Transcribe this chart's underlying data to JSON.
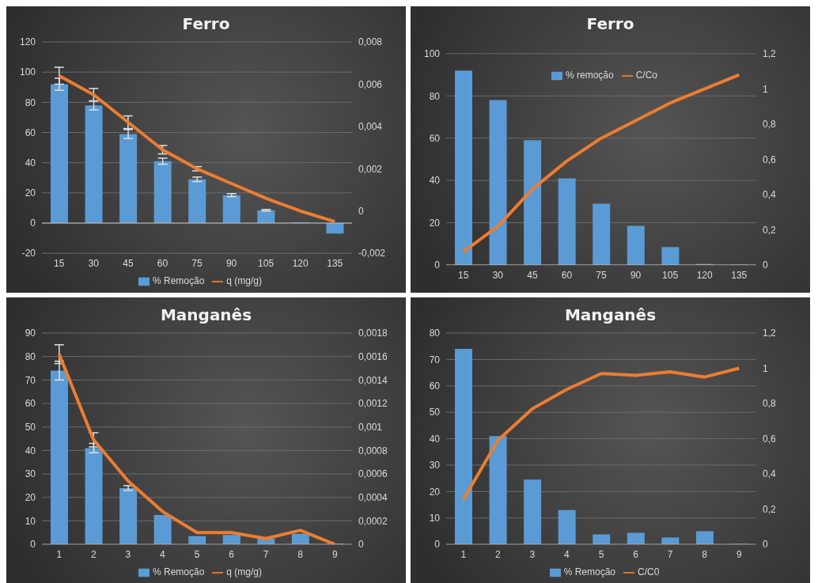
{
  "chart_data": [
    {
      "type": "bar",
      "title": "Ferro",
      "categories": [
        "15",
        "30",
        "45",
        "60",
        "75",
        "90",
        "105",
        "120",
        "135"
      ],
      "series": [
        {
          "name": "% Remoção",
          "color": "#5b9bd5",
          "values": [
            92,
            78,
            59,
            41,
            29,
            18.5,
            8.5,
            0.5,
            -7
          ],
          "errors": [
            4,
            3,
            3,
            2,
            1.5,
            1,
            0.5,
            null,
            null
          ]
        },
        {
          "name": "q (mg/g)",
          "type": "line",
          "axis": "y2",
          "color": "#ed7d31",
          "values": [
            0.0064,
            0.0055,
            0.0042,
            0.0029,
            0.002,
            0.0013,
            0.0006,
            0,
            -0.0005
          ],
          "errors": [
            0.0004,
            0.0003,
            0.0003,
            0.0002,
            0.0001,
            null,
            null,
            null,
            null
          ]
        }
      ],
      "ylim": [
        -20,
        120
      ],
      "yticks": [
        -20,
        0,
        20,
        40,
        60,
        80,
        100,
        120
      ],
      "y2lim": [
        -0.002,
        0.008
      ],
      "y2ticks": [
        {
          "value": -0.002,
          "label": "-0,002"
        },
        {
          "value": 0,
          "label": "0"
        },
        {
          "value": 0.002,
          "label": "0,002"
        },
        {
          "value": 0.004,
          "label": "0,004"
        },
        {
          "value": 0.006,
          "label": "0,006"
        },
        {
          "value": 0.008,
          "label": "0,008"
        }
      ],
      "grid": "y",
      "legend": "bottom",
      "marker": "none"
    },
    {
      "type": "bar",
      "title": "Ferro",
      "categories": [
        "15",
        "30",
        "45",
        "60",
        "75",
        "90",
        "105",
        "120",
        "135"
      ],
      "series": [
        {
          "name": "% remoção",
          "color": "#5b9bd5",
          "values": [
            92,
            78,
            59,
            41,
            29,
            18.5,
            8.5,
            0.5,
            0.2
          ]
        },
        {
          "name": "C/Co",
          "type": "line",
          "axis": "y2",
          "color": "#ed7d31",
          "values": [
            0.075,
            0.22,
            0.43,
            0.59,
            0.72,
            0.82,
            0.92,
            1,
            1.08
          ]
        }
      ],
      "ylim": [
        0,
        100
      ],
      "yticks": [
        0,
        20,
        40,
        60,
        80,
        100
      ],
      "y2lim": [
        0,
        1.2
      ],
      "y2ticks": [
        {
          "value": 0,
          "label": "0"
        },
        {
          "value": 0.2,
          "label": "0,2"
        },
        {
          "value": 0.4,
          "label": "0,4"
        },
        {
          "value": 0.6,
          "label": "0,6"
        },
        {
          "value": 0.8,
          "label": "0,8"
        },
        {
          "value": 1,
          "label": "1"
        },
        {
          "value": 1.2,
          "label": "1,2"
        }
      ],
      "grid": "y",
      "legend": "top",
      "marker": "none"
    },
    {
      "type": "bar",
      "title": "Manganês",
      "categories": [
        "1",
        "2",
        "3",
        "4",
        "5",
        "6",
        "7",
        "8",
        "9"
      ],
      "series": [
        {
          "name": "% Remoção",
          "color": "#5b9bd5",
          "values": [
            74,
            41,
            24,
            12.5,
            3.5,
            4,
            2.5,
            4.5,
            0.3
          ],
          "errors": [
            4,
            2,
            1,
            null,
            null,
            null,
            null,
            null,
            null
          ]
        },
        {
          "name": "q (mg/g)",
          "type": "line",
          "axis": "y2",
          "color": "#ed7d31",
          "values": [
            0.00162,
            0.00089,
            0.00054,
            0.00028,
            0.0001,
            0.0001,
            5e-05,
            0.00012,
            0
          ],
          "errors": [
            8e-05,
            6e-05,
            null,
            null,
            null,
            null,
            null,
            null,
            null
          ]
        }
      ],
      "ylim": [
        0,
        90
      ],
      "yticks": [
        0,
        10,
        20,
        30,
        40,
        50,
        60,
        70,
        80,
        90
      ],
      "y2lim": [
        0,
        0.0018
      ],
      "y2ticks": [
        {
          "value": 0,
          "label": "0"
        },
        {
          "value": 0.0002,
          "label": "0,0002"
        },
        {
          "value": 0.0004,
          "label": "0,0004"
        },
        {
          "value": 0.0006,
          "label": "0,0006"
        },
        {
          "value": 0.0008,
          "label": "0,0008"
        },
        {
          "value": 0.001,
          "label": "0,001"
        },
        {
          "value": 0.0012,
          "label": "0,0012"
        },
        {
          "value": 0.0014,
          "label": "0,0014"
        },
        {
          "value": 0.0016,
          "label": "0,0016"
        },
        {
          "value": 0.0018,
          "label": "0,0018"
        }
      ],
      "grid": "y",
      "legend": "bottom",
      "marker": "none"
    },
    {
      "type": "bar",
      "title": "Manganês",
      "categories": [
        "1",
        "2",
        "3",
        "4",
        "5",
        "6",
        "7",
        "8",
        "9"
      ],
      "series": [
        {
          "name": "% Remoção",
          "color": "#5b9bd5",
          "values": [
            74,
            41,
            24.5,
            13,
            3.8,
            4.4,
            2.6,
            5,
            0.2
          ]
        },
        {
          "name": "C/C0",
          "type": "line",
          "axis": "y2",
          "color": "#ed7d31",
          "values": [
            0.255,
            0.59,
            0.77,
            0.88,
            0.97,
            0.96,
            0.98,
            0.95,
            1
          ]
        }
      ],
      "ylim": [
        0,
        80
      ],
      "yticks": [
        0,
        10,
        20,
        30,
        40,
        50,
        60,
        70,
        80
      ],
      "y2lim": [
        0,
        1.2
      ],
      "y2ticks": [
        {
          "value": 0,
          "label": "0"
        },
        {
          "value": 0.2,
          "label": "0,2"
        },
        {
          "value": 0.4,
          "label": "0,4"
        },
        {
          "value": 0.6,
          "label": "0,6"
        },
        {
          "value": 0.8,
          "label": "0,8"
        },
        {
          "value": 1,
          "label": "1"
        },
        {
          "value": 1.2,
          "label": "1,2"
        }
      ],
      "grid": "y",
      "legend": "bottom",
      "marker": "none"
    }
  ]
}
